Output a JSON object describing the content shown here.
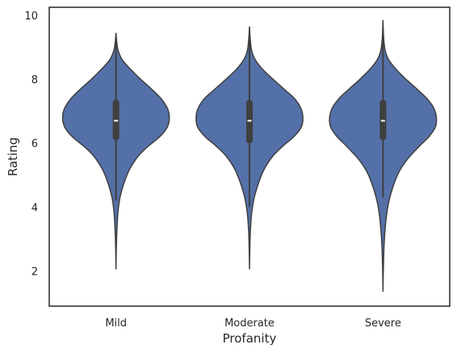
{
  "chart_data": {
    "type": "violin",
    "title": "",
    "xlabel": "Profanity",
    "ylabel": "Rating",
    "categories": [
      "Mild",
      "Moderate",
      "Severe"
    ],
    "ylim": [
      0.9,
      10.25
    ],
    "yticks": [
      2,
      4,
      6,
      8,
      10
    ],
    "grid": false,
    "legend": "none",
    "colors": {
      "fill": "#5470a8",
      "edge": "#3f3f3f",
      "box": "#3f3f3f",
      "median": "#ffffff",
      "frame": "#262626"
    },
    "series": [
      {
        "category": "Mild",
        "range": [
          2.05,
          9.45
        ],
        "quartiles": [
          6.1,
          7.35
        ],
        "median": 6.7,
        "whisker": [
          4.2,
          9.3
        ],
        "profile": [
          [
            2.05,
            0
          ],
          [
            2.6,
            0.005
          ],
          [
            3.2,
            0.015
          ],
          [
            3.8,
            0.035
          ],
          [
            4.3,
            0.075
          ],
          [
            4.8,
            0.16
          ],
          [
            5.2,
            0.26
          ],
          [
            5.6,
            0.42
          ],
          [
            5.9,
            0.6
          ],
          [
            6.2,
            0.82
          ],
          [
            6.5,
            0.96
          ],
          [
            6.8,
            1.0
          ],
          [
            7.1,
            0.96
          ],
          [
            7.4,
            0.84
          ],
          [
            7.7,
            0.66
          ],
          [
            8.0,
            0.46
          ],
          [
            8.3,
            0.28
          ],
          [
            8.6,
            0.12
          ],
          [
            8.9,
            0.04
          ],
          [
            9.2,
            0.012
          ],
          [
            9.45,
            0
          ]
        ]
      },
      {
        "category": "Moderate",
        "range": [
          2.05,
          9.65
        ],
        "quartiles": [
          6.0,
          7.35
        ],
        "median": 6.7,
        "whisker": [
          4.0,
          9.4
        ],
        "profile": [
          [
            2.05,
            0
          ],
          [
            2.6,
            0.005
          ],
          [
            3.2,
            0.015
          ],
          [
            3.8,
            0.04
          ],
          [
            4.3,
            0.09
          ],
          [
            4.8,
            0.18
          ],
          [
            5.2,
            0.28
          ],
          [
            5.6,
            0.44
          ],
          [
            5.9,
            0.62
          ],
          [
            6.2,
            0.83
          ],
          [
            6.5,
            0.97
          ],
          [
            6.8,
            1.0
          ],
          [
            7.1,
            0.96
          ],
          [
            7.4,
            0.84
          ],
          [
            7.7,
            0.64
          ],
          [
            8.0,
            0.44
          ],
          [
            8.3,
            0.25
          ],
          [
            8.6,
            0.11
          ],
          [
            8.9,
            0.04
          ],
          [
            9.3,
            0.012
          ],
          [
            9.65,
            0
          ]
        ]
      },
      {
        "category": "Severe",
        "range": [
          1.35,
          9.85
        ],
        "quartiles": [
          6.1,
          7.35
        ],
        "median": 6.7,
        "whisker": [
          4.3,
          9.6
        ],
        "profile": [
          [
            1.35,
            0
          ],
          [
            2.0,
            0.006
          ],
          [
            2.8,
            0.02
          ],
          [
            3.5,
            0.05
          ],
          [
            4.1,
            0.1
          ],
          [
            4.6,
            0.18
          ],
          [
            5.1,
            0.3
          ],
          [
            5.5,
            0.46
          ],
          [
            5.9,
            0.68
          ],
          [
            6.2,
            0.86
          ],
          [
            6.5,
            0.98
          ],
          [
            6.8,
            1.0
          ],
          [
            7.1,
            0.95
          ],
          [
            7.4,
            0.82
          ],
          [
            7.7,
            0.63
          ],
          [
            8.0,
            0.43
          ],
          [
            8.3,
            0.25
          ],
          [
            8.6,
            0.11
          ],
          [
            8.9,
            0.04
          ],
          [
            9.3,
            0.012
          ],
          [
            9.85,
            0
          ]
        ]
      }
    ]
  }
}
